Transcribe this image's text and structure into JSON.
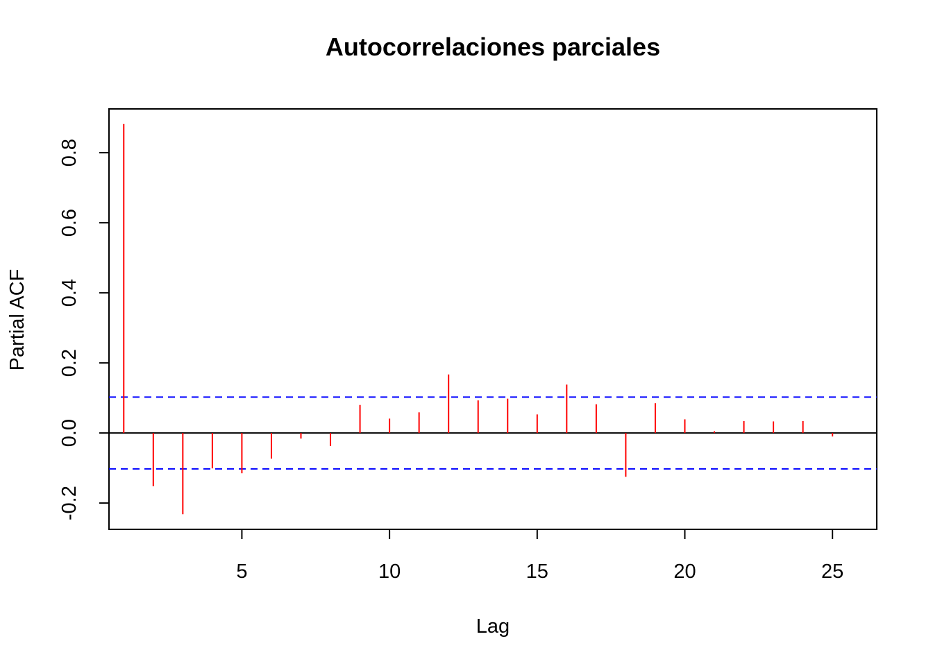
{
  "chart_data": {
    "type": "bar",
    "title": "Autocorrelaciones parciales",
    "xlabel": "Lag",
    "ylabel": "Partial ACF",
    "x": [
      1,
      2,
      3,
      4,
      5,
      6,
      7,
      8,
      9,
      10,
      11,
      12,
      13,
      14,
      15,
      16,
      17,
      18,
      19,
      20,
      21,
      22,
      23,
      24,
      25
    ],
    "values": [
      0.882,
      -0.152,
      -0.232,
      -0.101,
      -0.115,
      -0.073,
      -0.016,
      -0.037,
      0.08,
      0.041,
      0.059,
      0.167,
      0.093,
      0.098,
      0.053,
      0.138,
      0.082,
      -0.125,
      0.085,
      0.039,
      0.005,
      0.034,
      0.033,
      0.034,
      -0.01
    ],
    "confidence_bound": 0.1025,
    "xlim": [
      0.5,
      26.5
    ],
    "ylim": [
      -0.275,
      0.925
    ],
    "xticks": [
      5,
      10,
      15,
      20,
      25
    ],
    "yticks": [
      -0.2,
      0.0,
      0.2,
      0.4,
      0.6,
      0.8
    ],
    "xtick_labels": [
      "5",
      "10",
      "15",
      "20",
      "25"
    ],
    "ytick_labels": [
      "-0.2",
      "0.0",
      "0.2",
      "0.4",
      "0.6",
      "0.8"
    ],
    "grid": false,
    "colors": {
      "bars": "#ff0000",
      "confidence_lines": "#0000ff",
      "axes": "#000000"
    }
  }
}
